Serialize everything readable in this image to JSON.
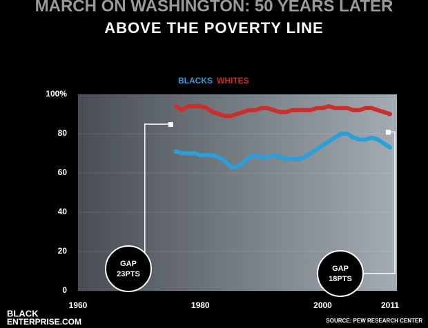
{
  "chart_data": {
    "type": "line",
    "header": "MARCH ON WASHINGTON: 50 YEARS LATER",
    "title": "ABOVE THE POVERTY LINE",
    "x": [
      1976,
      1977,
      1978,
      1979,
      1980,
      1981,
      1982,
      1983,
      1984,
      1985,
      1986,
      1987,
      1988,
      1989,
      1990,
      1991,
      1992,
      1993,
      1994,
      1995,
      1996,
      1997,
      1998,
      1999,
      2000,
      2001,
      2002,
      2003,
      2004,
      2005,
      2006,
      2007,
      2008,
      2009,
      2010,
      2011
    ],
    "series": [
      {
        "name": "BLACKS",
        "color": "#2b9fd8",
        "values": [
          71,
          70,
          70,
          70,
          69,
          69,
          69,
          68,
          66,
          63,
          63,
          65,
          68,
          69,
          68,
          68,
          69,
          68,
          67,
          67,
          67,
          68,
          70,
          72,
          74,
          76,
          78,
          80,
          80,
          78,
          77,
          77,
          78,
          77,
          75,
          73
        ]
      },
      {
        "name": "WHITES",
        "color": "#c9302c",
        "values": [
          94,
          92,
          94,
          94,
          94,
          93,
          91,
          90,
          89,
          89,
          90,
          91,
          92,
          92,
          93,
          93,
          92,
          91,
          91,
          92,
          92,
          92,
          92,
          93,
          93,
          94,
          93,
          93,
          93,
          92,
          92,
          93,
          93,
          92,
          91,
          90
        ]
      }
    ],
    "xlim": [
      1960,
      2011
    ],
    "xticks": [
      1960,
      1980,
      2000,
      2011
    ],
    "ylim": [
      0,
      100
    ],
    "yticks": [
      0,
      20,
      40,
      60,
      {
        "value": 80,
        "label": "80"
      },
      {
        "value": 100,
        "label": "100%"
      }
    ],
    "grid": true,
    "annotations": [
      [
        "GAP",
        "23PTS"
      ],
      [
        "GAP",
        "18PTS"
      ]
    ],
    "brand": [
      "BLACK",
      "ENTERPRISE.COM"
    ],
    "source": "SOURCE: PEW RESEARCH CENTER"
  }
}
